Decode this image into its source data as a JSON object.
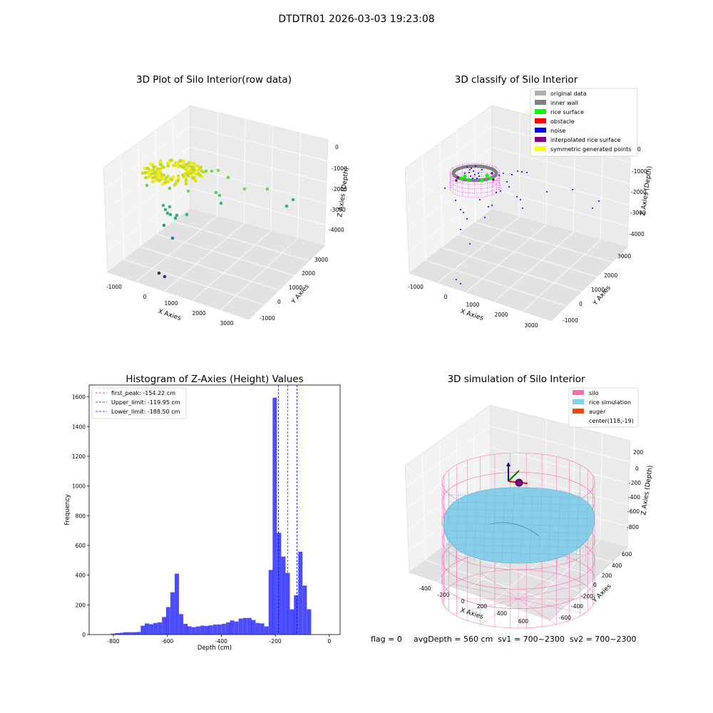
{
  "suptitle": "DTDTR01 2026-03-03 19:23:08",
  "chart_data": [
    {
      "type": "scatter",
      "title": "3D Plot of Silo Interior(row data)",
      "xlabel": "X Axies",
      "ylabel": "Y Axies",
      "zlabel": "Z Axies (Depth)",
      "x_ticks": [
        "-1000",
        "0",
        "1000",
        "2000",
        "3000"
      ],
      "y_ticks": [
        "-1000",
        "0",
        "1000",
        "2000",
        "3000"
      ],
      "z_ticks": [
        "0",
        "-1000",
        "-2000",
        "-3000",
        "-4000"
      ],
      "colormap": "viridis"
    },
    {
      "type": "scatter",
      "title": "3D classify of Silo Interior",
      "xlabel": "X Axies",
      "ylabel": "Y Axies",
      "zlabel": "Z Axies (Depth)",
      "x_ticks": [
        "-1000",
        "0",
        "1000",
        "2000",
        "3000"
      ],
      "y_ticks": [
        "-1000",
        "0",
        "1000",
        "2000",
        "3000"
      ],
      "z_ticks": [
        "0",
        "-1000",
        "-2000",
        "-3000",
        "-4000"
      ],
      "legend_position": "top-right",
      "legend": [
        {
          "label": "original data",
          "color": "#b0b0b0"
        },
        {
          "label": "inner wall",
          "color": "#808080"
        },
        {
          "label": "rice surface",
          "color": "#00ff00"
        },
        {
          "label": "obstacle",
          "color": "#ff0000"
        },
        {
          "label": "noise",
          "color": "#0000ff"
        },
        {
          "label": "interpolated rice surface",
          "color": "#800080"
        },
        {
          "label": "symmetric generated points",
          "color": "#ffff00"
        }
      ]
    },
    {
      "type": "bar",
      "title": "Histogram of Z-Axies (Height) Values",
      "xlabel": "Depth (cm)",
      "ylabel": "Frequency",
      "xlim": [
        -890,
        40
      ],
      "ylim": [
        0,
        1680
      ],
      "x_ticks": [
        -800,
        -600,
        -400,
        -200,
        0
      ],
      "y_ticks": [
        0,
        200,
        400,
        600,
        800,
        1000,
        1200,
        1400,
        1600
      ],
      "bar_color": "#0000ff",
      "bin_width": 15.8,
      "bins": [
        {
          "x": -810,
          "v": 6
        },
        {
          "x": -794,
          "v": 10
        },
        {
          "x": -778,
          "v": 12
        },
        {
          "x": -763,
          "v": 16
        },
        {
          "x": -747,
          "v": 16
        },
        {
          "x": -731,
          "v": 16
        },
        {
          "x": -715,
          "v": 18
        },
        {
          "x": -699,
          "v": 60
        },
        {
          "x": -684,
          "v": 75
        },
        {
          "x": -668,
          "v": 70
        },
        {
          "x": -652,
          "v": 78
        },
        {
          "x": -636,
          "v": 82
        },
        {
          "x": -620,
          "v": 118
        },
        {
          "x": -605,
          "v": 185
        },
        {
          "x": -589,
          "v": 285
        },
        {
          "x": -573,
          "v": 410
        },
        {
          "x": -557,
          "v": 138
        },
        {
          "x": -541,
          "v": 72
        },
        {
          "x": -526,
          "v": 55
        },
        {
          "x": -510,
          "v": 50
        },
        {
          "x": -494,
          "v": 55
        },
        {
          "x": -478,
          "v": 60
        },
        {
          "x": -462,
          "v": 58
        },
        {
          "x": -447,
          "v": 62
        },
        {
          "x": -431,
          "v": 68
        },
        {
          "x": -415,
          "v": 68
        },
        {
          "x": -399,
          "v": 72
        },
        {
          "x": -383,
          "v": 82
        },
        {
          "x": -368,
          "v": 95
        },
        {
          "x": -352,
          "v": 88
        },
        {
          "x": -336,
          "v": 108
        },
        {
          "x": -320,
          "v": 112
        },
        {
          "x": -304,
          "v": 112
        },
        {
          "x": -289,
          "v": 98
        },
        {
          "x": -273,
          "v": 78
        },
        {
          "x": -257,
          "v": 75
        },
        {
          "x": -241,
          "v": 55
        },
        {
          "x": -225,
          "v": 435
        },
        {
          "x": -210,
          "v": 1595
        },
        {
          "x": -194,
          "v": 685
        },
        {
          "x": -178,
          "v": 525
        },
        {
          "x": -162,
          "v": 415
        },
        {
          "x": -146,
          "v": 170
        },
        {
          "x": -131,
          "v": 265
        },
        {
          "x": -115,
          "v": 558
        },
        {
          "x": -99,
          "v": 330
        },
        {
          "x": -83,
          "v": 170
        }
      ],
      "vlines": [
        {
          "label": "first_peak: -154.22 cm",
          "x": -154.22,
          "color": "#ff0000"
        },
        {
          "label": "Upper_limit: -119.95 cm",
          "x": -119.95,
          "color": "#0000ff"
        },
        {
          "label": "Lower_limit: -188.50 cm",
          "x": -188.5,
          "color": "#0000ff"
        }
      ]
    },
    {
      "type": "surface",
      "title": "3D simulation of Silo Interior",
      "xlabel": "X Axies",
      "ylabel": "Y Axies",
      "zlabel": "Z Axies (Depth)",
      "x_ticks": [
        "-400",
        "-200",
        "0",
        "200",
        "400",
        "600"
      ],
      "y_ticks": [
        "600",
        "400",
        "200",
        "0",
        "-200",
        "-400",
        "-600"
      ],
      "z_ticks": [
        "200",
        "0",
        "-200",
        "-400",
        "-600",
        "-800"
      ],
      "legend_position": "top-right",
      "legend": [
        {
          "label": "silo",
          "color": "#ff69b4"
        },
        {
          "label": "rice simulation",
          "color": "#87ceeb"
        },
        {
          "label": "auger",
          "color": "#ff4500"
        },
        {
          "label": "center(118,-19)",
          "color": ""
        }
      ]
    }
  ],
  "footer": {
    "flag": "flag = 0",
    "stats": "avgDepth = 560 cm  sv1 = 700~2300  sv2 = 700~2300"
  }
}
